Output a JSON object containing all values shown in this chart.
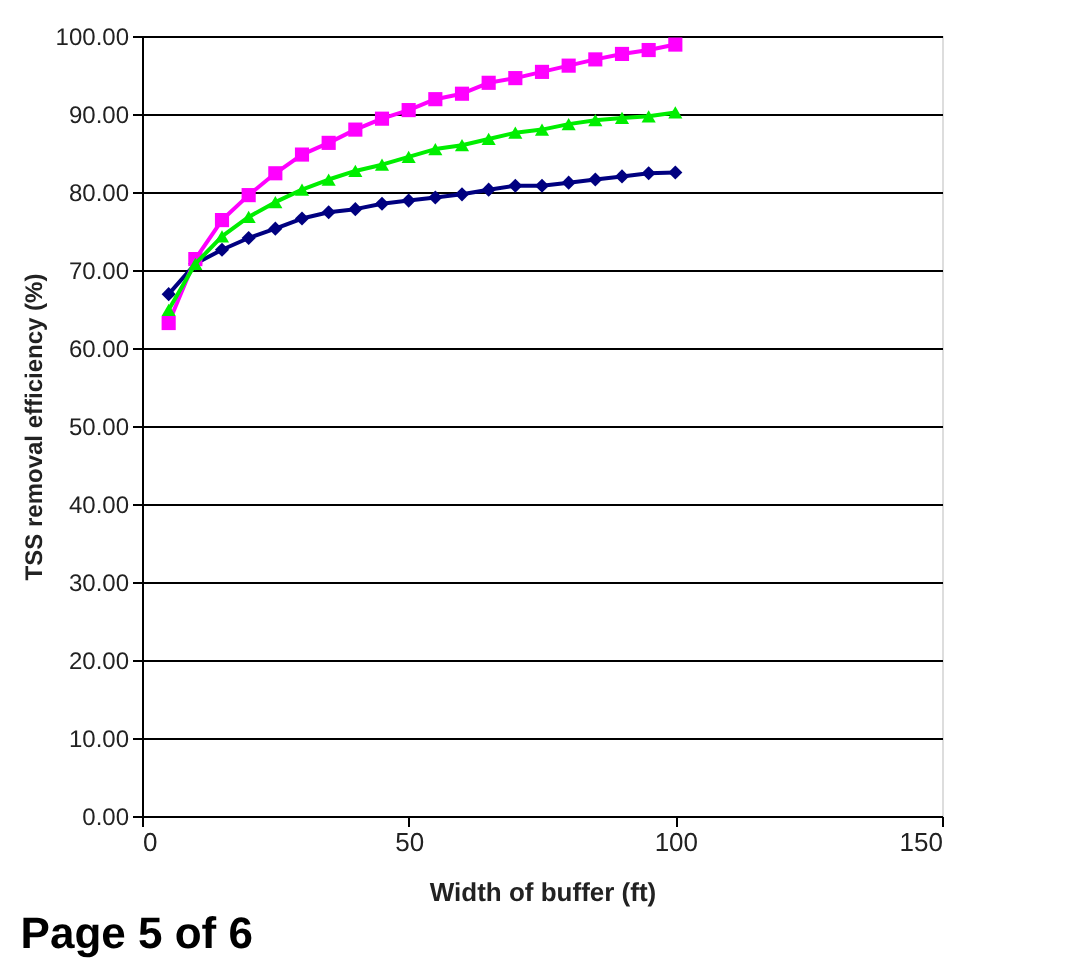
{
  "chart_data": {
    "type": "line",
    "xlabel": "Width of buffer (ft)",
    "ylabel": "TSS removal efficiency (%)",
    "x": [
      5,
      10,
      15,
      20,
      25,
      30,
      35,
      40,
      45,
      50,
      55,
      60,
      65,
      70,
      75,
      80,
      85,
      90,
      95,
      100
    ],
    "series": [
      {
        "color": "#000080",
        "marker": "diamond",
        "values": [
          66.9,
          70.8,
          72.6,
          74.1,
          75.3,
          76.6,
          77.4,
          77.8,
          78.5,
          78.9,
          79.3,
          79.7,
          80.3,
          80.8,
          80.8,
          81.2,
          81.6,
          82.0,
          82.4,
          82.5
        ]
      },
      {
        "color": "#ff00ff",
        "marker": "square",
        "values": [
          63.2,
          71.4,
          76.4,
          79.6,
          82.4,
          84.8,
          86.3,
          88.0,
          89.4,
          90.5,
          91.9,
          92.6,
          94.0,
          94.6,
          95.4,
          96.2,
          97.0,
          97.7,
          98.2,
          98.9
        ]
      },
      {
        "color": "#00ee00",
        "marker": "triangle",
        "values": [
          64.9,
          70.8,
          74.3,
          76.8,
          78.7,
          80.3,
          81.6,
          82.7,
          83.5,
          84.5,
          85.5,
          86.0,
          86.8,
          87.6,
          88.0,
          88.7,
          89.2,
          89.5,
          89.7,
          90.2
        ]
      }
    ],
    "xlim": [
      0,
      150
    ],
    "xticks": [
      0,
      50,
      100,
      150
    ],
    "ylim": [
      0,
      100
    ],
    "yticks": [
      {
        "value": 0,
        "label": "0.00"
      },
      {
        "value": 10,
        "label": "10.00"
      },
      {
        "value": 20,
        "label": "20.00"
      },
      {
        "value": 30,
        "label": "30.00"
      },
      {
        "value": 40,
        "label": "40.00"
      },
      {
        "value": 50,
        "label": "50.00"
      },
      {
        "value": 60,
        "label": "60.00"
      },
      {
        "value": 70,
        "label": "70.00"
      },
      {
        "value": 80,
        "label": "80.00"
      },
      {
        "value": 90,
        "label": "90.00"
      },
      {
        "value": 100,
        "label": "100.00"
      }
    ],
    "grid": "y",
    "legend": false,
    "line_style": "solid",
    "annotations": [
      "Page 5 of 6"
    ]
  }
}
